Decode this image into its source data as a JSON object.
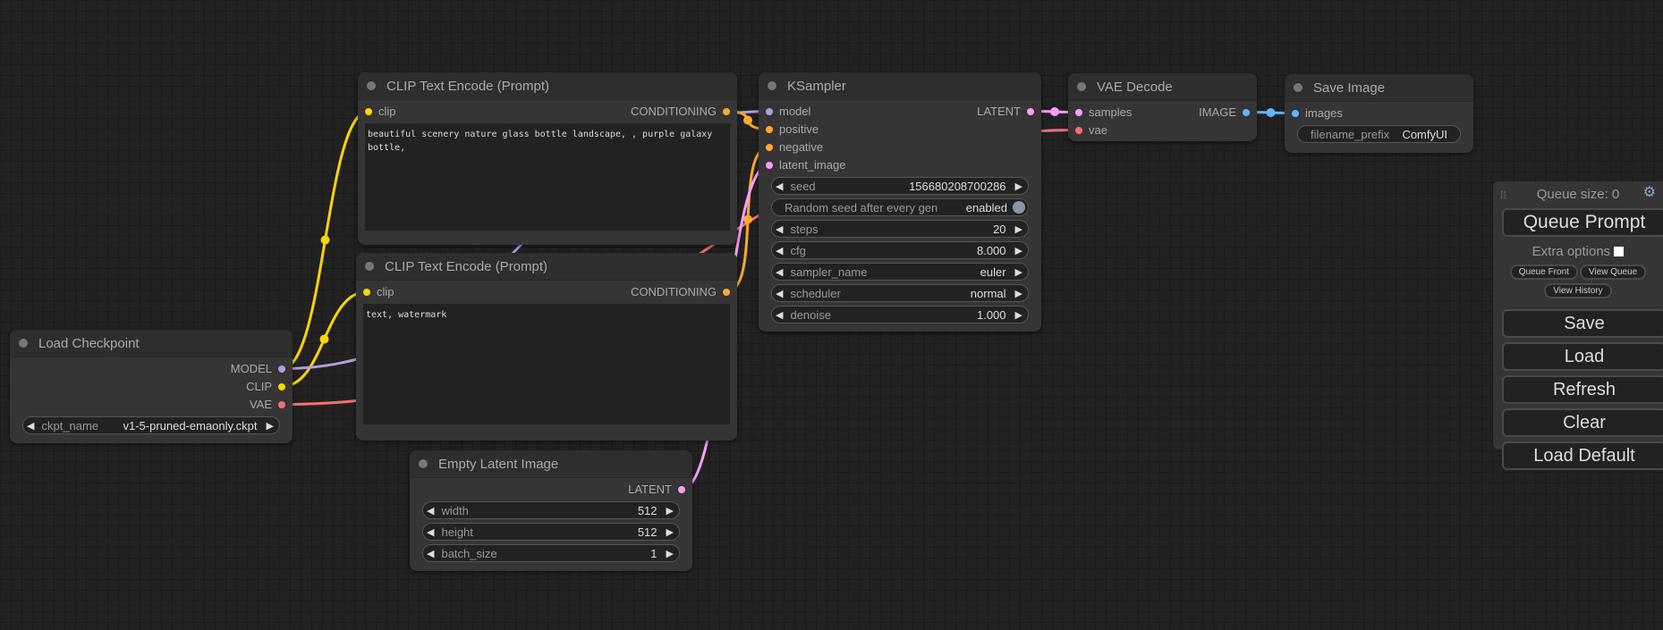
{
  "colors": {
    "MODEL": "#b39ddb",
    "CLIP": "#ffd500",
    "VAE": "#ff6e6e",
    "CONDITIONING": "#ffa931",
    "LATENT": "#ff9cf9",
    "IMAGE": "#64b5f6"
  },
  "nodes": [
    {
      "title": "CLIP Text Encode (Prompt)",
      "inputs": [
        {
          "label": "clip",
          "type": "CLIP"
        }
      ],
      "outputs": [
        {
          "label": "CONDITIONING",
          "type": "CONDITIONING"
        }
      ],
      "text": "beautiful scenery nature glass bottle landscape, , purple galaxy bottle,"
    },
    {
      "title": "CLIP Text Encode (Prompt)",
      "inputs": [
        {
          "label": "clip",
          "type": "CLIP"
        }
      ],
      "outputs": [
        {
          "label": "CONDITIONING",
          "type": "CONDITIONING"
        }
      ],
      "text": "text, watermark"
    },
    {
      "title": "Load Checkpoint",
      "inputs": [],
      "outputs": [
        {
          "label": "MODEL",
          "type": "MODEL"
        },
        {
          "label": "CLIP",
          "type": "CLIP"
        },
        {
          "label": "VAE",
          "type": "VAE"
        }
      ],
      "widgets": [
        {
          "label": "ckpt_name",
          "value": "v1-5-pruned-emaonly.ckpt"
        }
      ]
    },
    {
      "title": "Empty Latent Image",
      "inputs": [],
      "outputs": [
        {
          "label": "LATENT",
          "type": "LATENT"
        }
      ],
      "widgets": [
        {
          "label": "width",
          "value": "512"
        },
        {
          "label": "height",
          "value": "512"
        },
        {
          "label": "batch_size",
          "value": "1"
        }
      ]
    },
    {
      "title": "KSampler",
      "inputs": [
        {
          "label": "model",
          "type": "MODEL"
        },
        {
          "label": "positive",
          "type": "CONDITIONING"
        },
        {
          "label": "negative",
          "type": "CONDITIONING"
        },
        {
          "label": "latent_image",
          "type": "LATENT"
        }
      ],
      "outputs": [
        {
          "label": "LATENT",
          "type": "LATENT"
        }
      ],
      "widgets": [
        {
          "label": "seed",
          "value": "156680208700286"
        },
        {
          "label": "Random seed after every gen",
          "value": "enabled",
          "toggle": true
        },
        {
          "label": "steps",
          "value": "20"
        },
        {
          "label": "cfg",
          "value": "8.000"
        },
        {
          "label": "sampler_name",
          "value": "euler"
        },
        {
          "label": "scheduler",
          "value": "normal"
        },
        {
          "label": "denoise",
          "value": "1.000"
        }
      ]
    },
    {
      "title": "VAE Decode",
      "inputs": [
        {
          "label": "samples",
          "type": "LATENT"
        },
        {
          "label": "vae",
          "type": "VAE"
        }
      ],
      "outputs": [
        {
          "label": "IMAGE",
          "type": "IMAGE"
        }
      ]
    },
    {
      "title": "Save Image",
      "inputs": [
        {
          "label": "images",
          "type": "IMAGE"
        }
      ],
      "outputs": [],
      "widgets": [
        {
          "label": "filename_prefix",
          "value": "ComfyUI",
          "plain": true
        }
      ]
    }
  ],
  "panel": {
    "queue_size": "Queue size: 0",
    "queue_prompt": "Queue Prompt",
    "extra_options": "Extra options",
    "queue_front": "Queue Front",
    "view_queue": "View Queue",
    "view_history": "View History",
    "save": "Save",
    "load": "Load",
    "refresh": "Refresh",
    "clear": "Clear",
    "load_default": "Load Default"
  }
}
